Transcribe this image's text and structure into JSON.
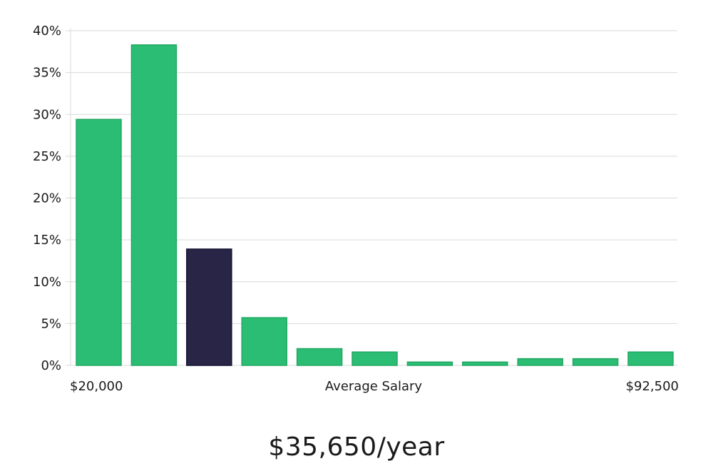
{
  "chart_data": {
    "type": "bar",
    "categories": [
      "1",
      "2",
      "3",
      "4",
      "5",
      "6",
      "7",
      "8",
      "9",
      "10",
      "11"
    ],
    "values": [
      29.4,
      38.3,
      13.9,
      5.7,
      2.0,
      1.6,
      0.4,
      0.4,
      0.8,
      0.8,
      1.6
    ],
    "highlight_index": 2,
    "ylim": [
      0,
      40
    ],
    "y_ticks": [
      0,
      5,
      10,
      15,
      20,
      25,
      30,
      35,
      40
    ],
    "y_tick_suffix": "%",
    "x_min_label": "$20,000",
    "x_max_label": "$92,500",
    "xlabel": "Average Salary",
    "grid": true,
    "colors": {
      "bar": "#2bbd74",
      "bar_edge": "#22a862",
      "highlight": "#282546",
      "highlight_edge": "#141230",
      "grid": "#d9d9d9"
    }
  },
  "headline": "$35,650/year"
}
